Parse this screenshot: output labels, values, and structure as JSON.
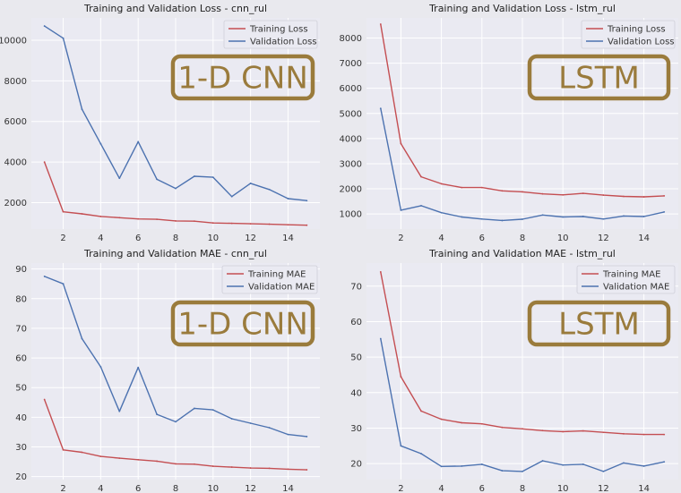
{
  "chart_data": [
    {
      "type": "line",
      "title": "Training and Validation Loss - cnn_rul",
      "xlabel": "",
      "ylabel": "",
      "x": [
        1,
        2,
        3,
        4,
        5,
        6,
        7,
        8,
        9,
        10,
        11,
        12,
        13,
        14,
        15
      ],
      "xlim": [
        0.3,
        15.7
      ],
      "ylim": [
        700,
        11100
      ],
      "xticks": [
        2,
        4,
        6,
        8,
        10,
        12,
        14
      ],
      "yticks": [
        2000,
        4000,
        6000,
        8000,
        10000
      ],
      "grid": true,
      "legend": "top-right",
      "series": [
        {
          "name": "Training Loss",
          "color": "#c44e52",
          "values": [
            4000,
            1550,
            1450,
            1320,
            1260,
            1200,
            1180,
            1100,
            1090,
            1000,
            980,
            960,
            940,
            910,
            890
          ]
        },
        {
          "name": "Validation Loss",
          "color": "#4c72b0",
          "values": [
            10700,
            10100,
            6600,
            4900,
            3200,
            5000,
            3150,
            2700,
            3300,
            3250,
            2300,
            2950,
            2650,
            2200,
            2100
          ]
        }
      ],
      "annotation": "1-D CNN"
    },
    {
      "type": "line",
      "title": "Training and Validation Loss - lstm_rul",
      "xlabel": "",
      "ylabel": "",
      "x": [
        1,
        2,
        3,
        4,
        5,
        6,
        7,
        8,
        9,
        10,
        11,
        12,
        13,
        14,
        15
      ],
      "xlim": [
        0.3,
        15.7
      ],
      "ylim": [
        400,
        8800
      ],
      "xticks": [
        2,
        4,
        6,
        8,
        10,
        12,
        14
      ],
      "yticks": [
        1000,
        2000,
        3000,
        4000,
        5000,
        6000,
        7000,
        8000
      ],
      "grid": true,
      "legend": "top-right",
      "series": [
        {
          "name": "Training Loss",
          "color": "#c44e52",
          "values": [
            8550,
            3800,
            2480,
            2200,
            2050,
            2050,
            1920,
            1880,
            1800,
            1760,
            1820,
            1750,
            1700,
            1680,
            1720
          ]
        },
        {
          "name": "Validation Loss",
          "color": "#4c72b0",
          "values": [
            5200,
            1150,
            1330,
            1050,
            880,
            800,
            740,
            790,
            960,
            880,
            900,
            800,
            920,
            900,
            1080
          ]
        }
      ],
      "annotation": "LSTM"
    },
    {
      "type": "line",
      "title": "Training and Validation MAE - cnn_rul",
      "xlabel": "",
      "ylabel": "",
      "x": [
        1,
        2,
        3,
        4,
        5,
        6,
        7,
        8,
        9,
        10,
        11,
        12,
        13,
        14,
        15
      ],
      "xlim": [
        0.3,
        15.7
      ],
      "ylim": [
        19,
        92
      ],
      "xticks": [
        2,
        4,
        6,
        8,
        10,
        12,
        14
      ],
      "yticks": [
        20,
        30,
        40,
        50,
        60,
        70,
        80,
        90
      ],
      "grid": true,
      "legend": "top-right",
      "series": [
        {
          "name": "Training MAE",
          "color": "#c44e52",
          "values": [
            46,
            29,
            28.2,
            26.8,
            26.2,
            25.7,
            25.2,
            24.3,
            24.2,
            23.5,
            23.2,
            22.9,
            22.8,
            22.5,
            22.3
          ]
        },
        {
          "name": "Validation MAE",
          "color": "#4c72b0",
          "values": [
            87.5,
            85,
            66.5,
            57,
            42,
            56.8,
            41,
            38.5,
            43,
            42.5,
            39.5,
            38,
            36.5,
            34.2,
            33.5
          ]
        }
      ],
      "annotation": "1-D CNN"
    },
    {
      "type": "line",
      "title": "Training and Validation MAE - lstm_rul",
      "xlabel": "",
      "ylabel": "",
      "x": [
        1,
        2,
        3,
        4,
        5,
        6,
        7,
        8,
        9,
        10,
        11,
        12,
        13,
        14,
        15
      ],
      "xlim": [
        0.3,
        15.7
      ],
      "ylim": [
        15.5,
        76.5
      ],
      "xticks": [
        2,
        4,
        6,
        8,
        10,
        12,
        14
      ],
      "yticks": [
        20,
        30,
        40,
        50,
        60,
        70
      ],
      "grid": true,
      "legend": "top-right",
      "series": [
        {
          "name": "Training MAE",
          "color": "#c44e52",
          "values": [
            74,
            44.5,
            34.8,
            32.5,
            31.5,
            31.2,
            30.2,
            29.8,
            29.3,
            29,
            29.2,
            28.8,
            28.4,
            28.2,
            28.2
          ]
        },
        {
          "name": "Validation MAE",
          "color": "#4c72b0",
          "values": [
            55.2,
            25,
            22.8,
            19.2,
            19.3,
            19.8,
            18,
            17.8,
            20.8,
            19.6,
            19.8,
            17.8,
            20.2,
            19.3,
            20.5
          ]
        }
      ],
      "annotation": "LSTM"
    }
  ],
  "colors": {
    "plot_bg": "#eaeaf2",
    "grid": "#ffffff",
    "annotation_border": "#9a7b3c",
    "annotation_text": "#9a7b3c"
  }
}
